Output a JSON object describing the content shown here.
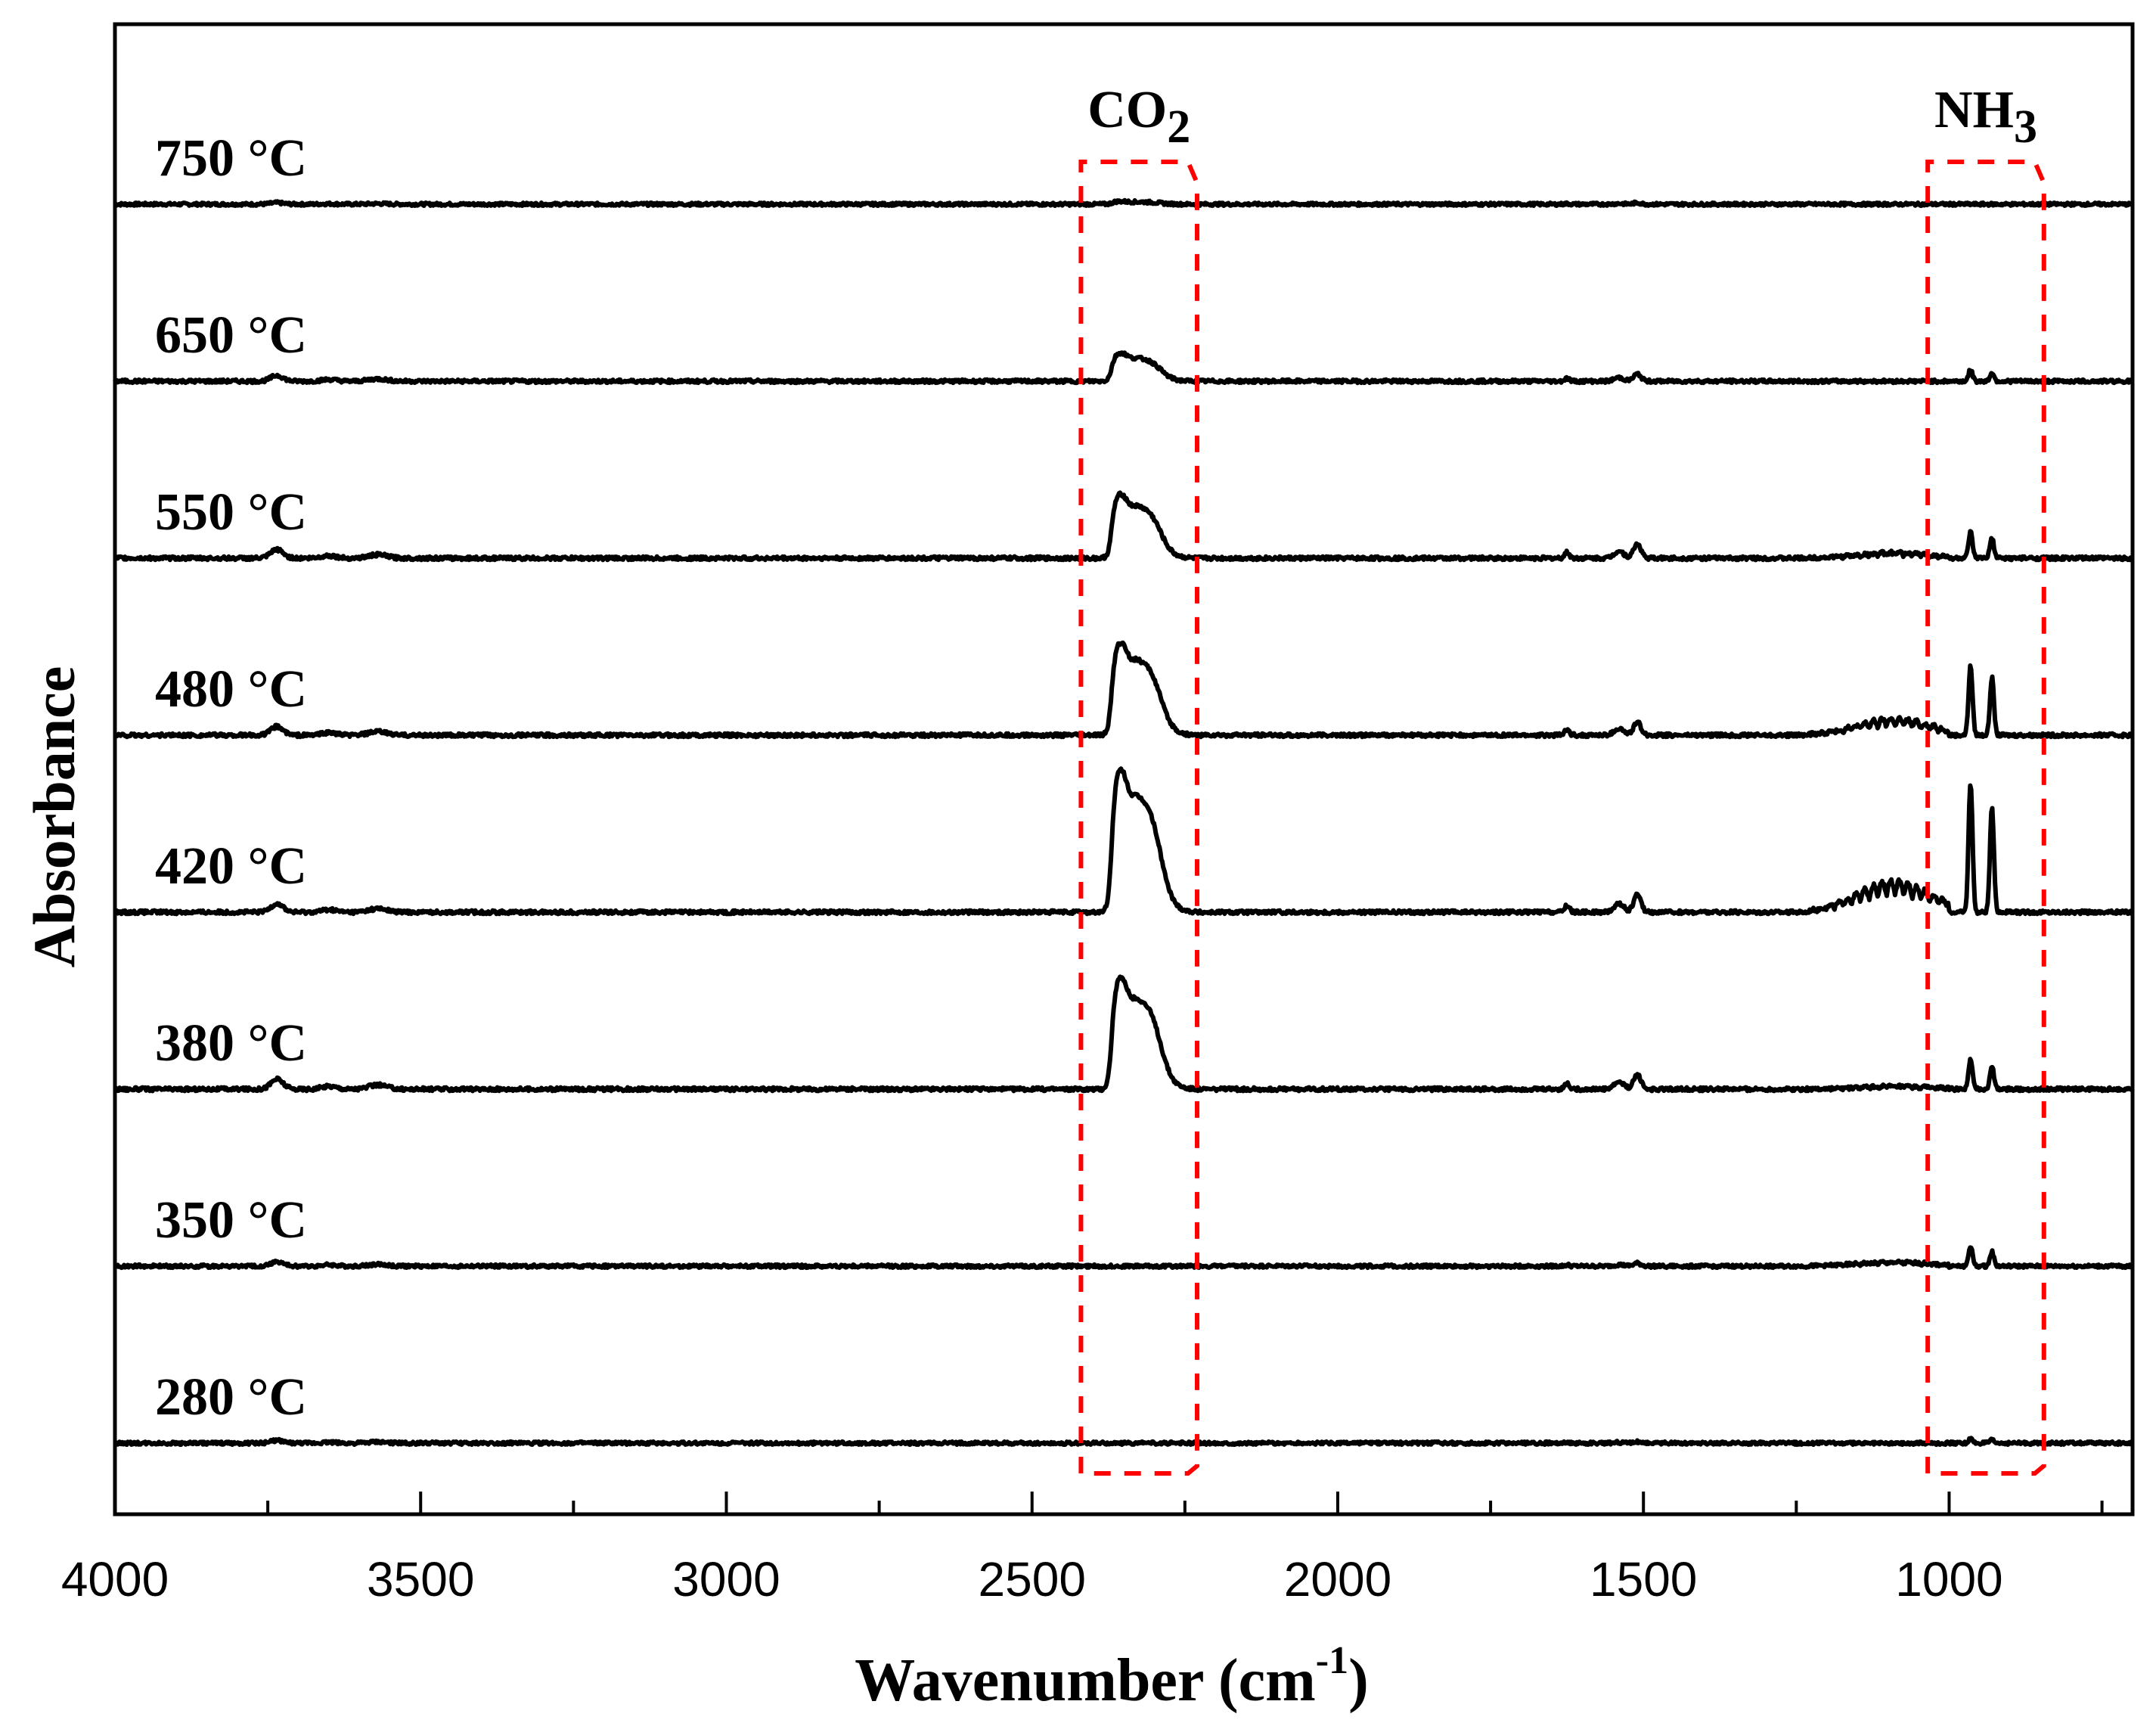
{
  "chart_data": {
    "type": "line",
    "title": "",
    "xlabel_main": "Wavenumber (cm",
    "xlabel_sup": "-1",
    "xlabel_close": ")",
    "ylabel": "Absorbance",
    "xlim": [
      4000,
      700
    ],
    "x_ticks": [
      4000,
      3500,
      3000,
      2500,
      2000,
      1500,
      1000
    ],
    "x_tick_labels": [
      "4000",
      "3500",
      "3000",
      "2500",
      "2000",
      "1500",
      "1000"
    ],
    "grid": false,
    "legend": "none",
    "band_annotations": [
      {
        "name": "CO2",
        "label_base": "CO",
        "label_sub": "2",
        "x_range": [
          2420,
          2230
        ],
        "color": "#ff0000"
      },
      {
        "name": "NH3",
        "label_base": "NH",
        "label_sub": "3",
        "x_range": [
          1035,
          845
        ],
        "color": "#ff0000"
      }
    ],
    "series": [
      {
        "name": "750 °C",
        "co2_peak": 0.02,
        "nh3_p1": 0.0,
        "nh3_p2": 0.0,
        "band_1000_1200": 0.0,
        "small_1500": 0.01,
        "noise_3700": 0.01
      },
      {
        "name": "650 °C",
        "co2_peak": 0.2,
        "nh3_p1": 0.08,
        "nh3_p2": 0.06,
        "band_1000_1200": 0.0,
        "small_1500": 0.05,
        "noise_3700": 0.04
      },
      {
        "name": "550 °C",
        "co2_peak": 0.45,
        "nh3_p1": 0.18,
        "nh3_p2": 0.14,
        "band_1000_1200": 0.04,
        "small_1500": 0.1,
        "noise_3700": 0.06
      },
      {
        "name": "480 °C",
        "co2_peak": 0.65,
        "nh3_p1": 0.48,
        "nh3_p2": 0.4,
        "band_1000_1200": 0.12,
        "small_1500": 0.09,
        "noise_3700": 0.06
      },
      {
        "name": "420 °C",
        "co2_peak": 1.0,
        "nh3_p1": 0.9,
        "nh3_p2": 0.72,
        "band_1000_1200": 0.22,
        "small_1500": 0.12,
        "noise_3700": 0.06
      },
      {
        "name": "380 °C",
        "co2_peak": 0.78,
        "nh3_p1": 0.2,
        "nh3_p2": 0.16,
        "band_1000_1200": 0.02,
        "small_1500": 0.1,
        "noise_3700": 0.07
      },
      {
        "name": "350 °C",
        "co2_peak": 0.0,
        "nh3_p1": 0.14,
        "nh3_p2": 0.1,
        "band_1000_1200": 0.03,
        "small_1500": 0.02,
        "noise_3700": 0.03
      },
      {
        "name": "280 °C",
        "co2_peak": 0.0,
        "nh3_p1": 0.03,
        "nh3_p2": 0.02,
        "band_1000_1200": 0.0,
        "small_1500": 0.01,
        "noise_3700": 0.02
      }
    ]
  },
  "colors": {
    "line": "#000000",
    "band": "#ff0000",
    "background": "#ffffff"
  }
}
